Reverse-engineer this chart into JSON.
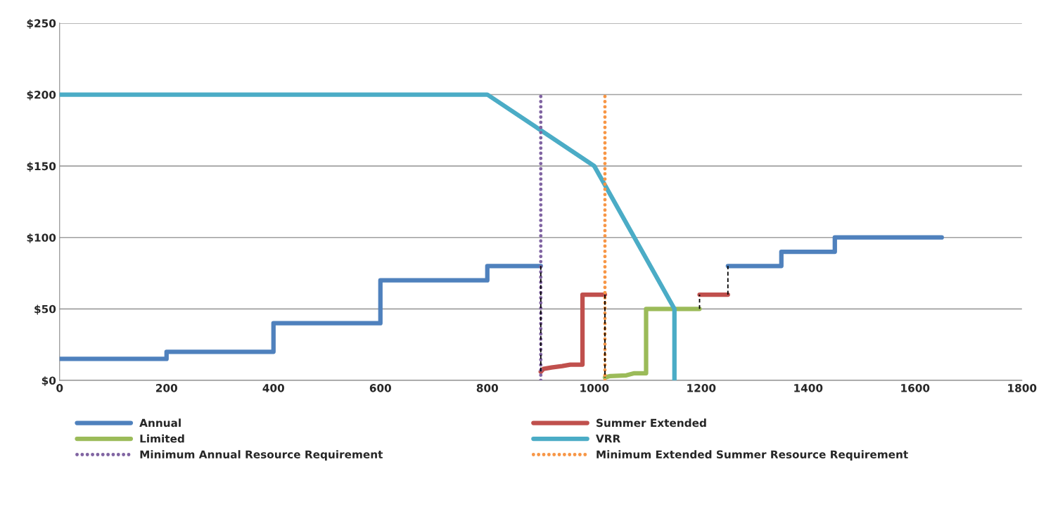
{
  "chart_data": {
    "type": "line",
    "xlim": [
      0,
      1800
    ],
    "xticks": [
      0,
      200,
      400,
      600,
      800,
      1000,
      1200,
      1400,
      1600,
      1800
    ],
    "ylim": [
      0,
      250
    ],
    "yticks": [
      {
        "value": 0,
        "label": "$0"
      },
      {
        "value": 50,
        "label": "$50"
      },
      {
        "value": 100,
        "label": "$100"
      },
      {
        "value": 150,
        "label": "$150"
      },
      {
        "value": 200,
        "label": "$200"
      },
      {
        "value": 250,
        "label": "$250"
      }
    ],
    "grid": "y",
    "legend": "bottom",
    "marker": "none",
    "series": [
      {
        "name": "Annual",
        "color": "#4f81bd",
        "line_style": "solid",
        "x": [
          0,
          200,
          200,
          400,
          400,
          600,
          600,
          800,
          800,
          900,
          1000,
          1250,
          1350,
          1350,
          1450,
          1450,
          1650
        ],
        "values": [
          15,
          15,
          20,
          20,
          40,
          40,
          70,
          70,
          80,
          80,
          null,
          80,
          80,
          90,
          90,
          100,
          100
        ]
      },
      {
        "name": "Summer Extended",
        "color": "#c0504d",
        "line_style": "solid",
        "x": [
          900,
          905,
          920,
          940,
          955,
          978,
          978,
          1020,
          1100,
          1197,
          1250
        ],
        "values": [
          6,
          8,
          9,
          10,
          11,
          11,
          60,
          60,
          null,
          60,
          60
        ]
      },
      {
        "name": "Limited",
        "color": "#9bbb59",
        "line_style": "solid",
        "x": [
          1020,
          1030,
          1060,
          1075,
          1097,
          1097,
          1197
        ],
        "values": [
          2,
          3,
          3.5,
          5,
          5,
          50,
          50
        ]
      },
      {
        "name": "VRR",
        "color": "#4bacc6",
        "line_style": "solid",
        "x": [
          0,
          800,
          1000,
          1150,
          1150
        ],
        "values": [
          200,
          200,
          150,
          50,
          0
        ]
      },
      {
        "name": "Minimum Annual Resource Requirement",
        "color": "#8064a2",
        "line_style": "dotted",
        "x": [
          900,
          900
        ],
        "values": [
          0,
          200
        ]
      },
      {
        "name": "Minimum Extended Summer Resource Requirement",
        "color": "#f79646",
        "line_style": "dotted",
        "x": [
          1020,
          1020
        ],
        "values": [
          0,
          200
        ]
      },
      {
        "color": "#000000",
        "line_style": "dashed",
        "x": [
          900,
          900,
          910,
          1020,
          1020,
          1100,
          1197,
          1197,
          1220,
          1250,
          1250
        ],
        "values": [
          80,
          6,
          null,
          60,
          2,
          null,
          50,
          60,
          null,
          60,
          80
        ]
      }
    ]
  }
}
